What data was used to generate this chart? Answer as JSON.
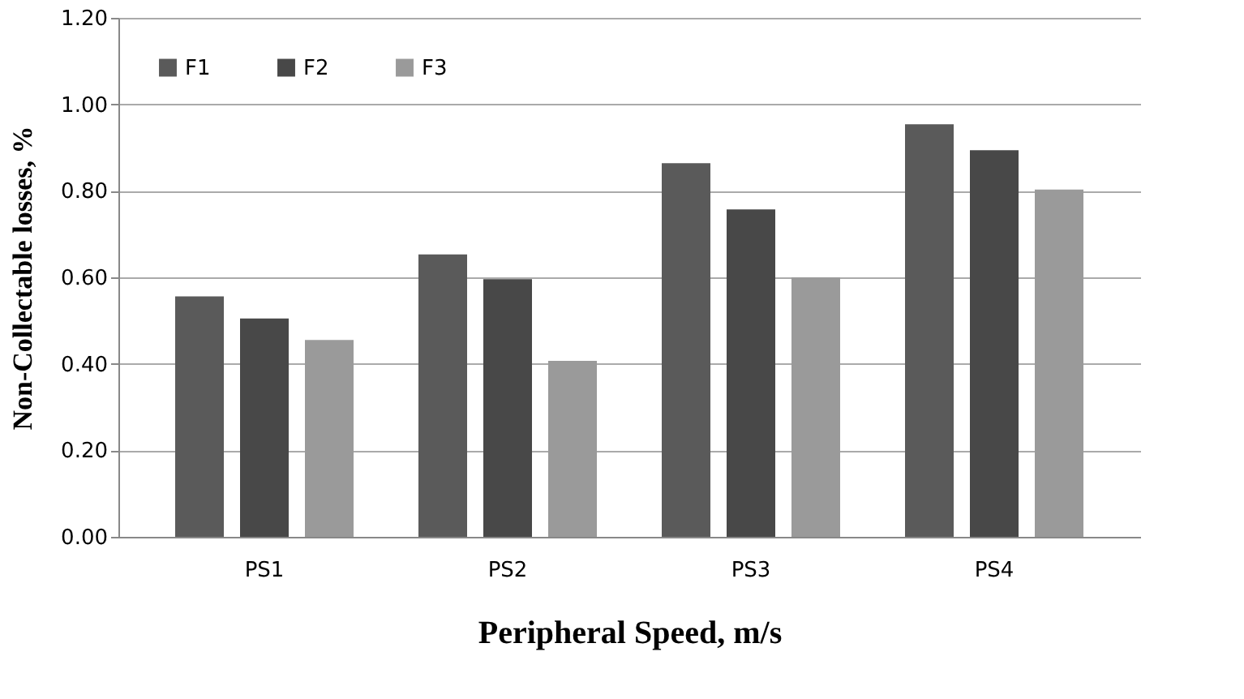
{
  "chart_data": {
    "type": "bar",
    "xlabel": "Peripheral Speed, m/s",
    "ylabel": "Non-Collectable losses, %",
    "categories": [
      "PS1",
      "PS2",
      "PS3",
      "PS4"
    ],
    "series": [
      {
        "name": "F1",
        "color": "#5a5a5a",
        "values": [
          0.556,
          0.653,
          0.864,
          0.954
        ]
      },
      {
        "name": "F2",
        "color": "#484848",
        "values": [
          0.505,
          0.596,
          0.757,
          0.894
        ]
      },
      {
        "name": "F3",
        "color": "#9a9a9a",
        "values": [
          0.455,
          0.407,
          0.6,
          0.803
        ]
      }
    ],
    "ylim": [
      0,
      1.2
    ],
    "yticks": [
      {
        "value": 0,
        "label": "0.00"
      },
      {
        "value": 0.2,
        "label": "0.20"
      },
      {
        "value": 0.4,
        "label": "0.40"
      },
      {
        "value": 0.6,
        "label": "0.60"
      },
      {
        "value": 0.8,
        "label": "0.80"
      },
      {
        "value": 1.0,
        "label": "1.00"
      },
      {
        "value": 1.2,
        "label": "1.20"
      }
    ],
    "grid": "y",
    "legend": "top left"
  }
}
